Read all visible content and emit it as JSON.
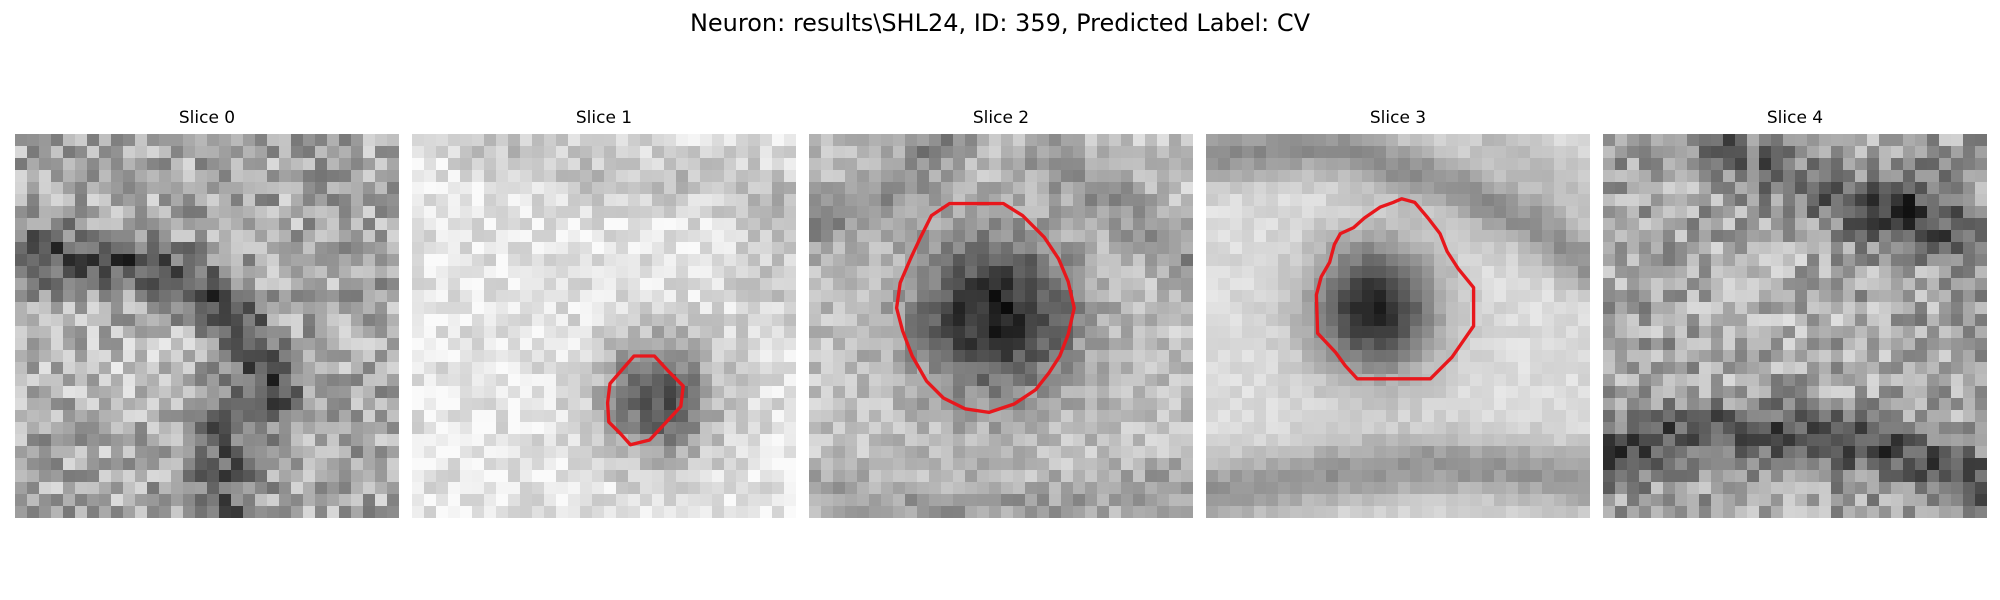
{
  "figure": {
    "title": "Neuron: results\\SHL24, ID: 359, Predicted Label: CV"
  },
  "colors": {
    "outline": "#e8171c",
    "background": "#ffffff"
  },
  "panels": [
    {
      "title": "Slice 0",
      "has_outline": false
    },
    {
      "title": "Slice 1",
      "has_outline": true
    },
    {
      "title": "Slice 2",
      "has_outline": true
    },
    {
      "title": "Slice 3",
      "has_outline": true
    },
    {
      "title": "Slice 4",
      "has_outline": false
    }
  ]
}
